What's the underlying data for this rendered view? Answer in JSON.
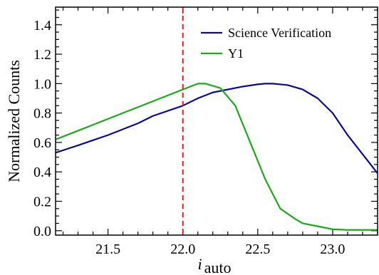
{
  "chart_data": {
    "type": "line",
    "title": "",
    "ylabel": "Normalized  Counts",
    "xlabel": {
      "main": "i",
      "subscript": "auto"
    },
    "xlim": [
      21.15,
      23.3
    ],
    "ylim": [
      -0.03,
      1.52
    ],
    "xticks": [
      21.5,
      22.0,
      22.5,
      23.0
    ],
    "xtick_labels": [
      "21.5",
      "22.0",
      "22.5",
      "23.0"
    ],
    "yticks": [
      0.0,
      0.2,
      0.4,
      0.6,
      0.8,
      1.0,
      1.2,
      1.4
    ],
    "ytick_labels": [
      "0.0",
      "0.2",
      "0.4",
      "0.6",
      "0.8",
      "1.0",
      "1.2",
      "1.4"
    ],
    "legend": {
      "placement": "top-right"
    },
    "vline": {
      "x": 22.0,
      "color": "#e41a1c",
      "style": "dashed"
    },
    "series": [
      {
        "name": "Science Verification",
        "color": "#0a0a96",
        "x": [
          21.15,
          21.3,
          21.5,
          21.7,
          21.8,
          22.0,
          22.1,
          22.2,
          22.3,
          22.4,
          22.5,
          22.55,
          22.6,
          22.7,
          22.8,
          22.9,
          23.0,
          23.1,
          23.2,
          23.3
        ],
        "values": [
          0.53,
          0.58,
          0.65,
          0.73,
          0.78,
          0.85,
          0.9,
          0.94,
          0.96,
          0.98,
          0.995,
          1.0,
          1.0,
          0.99,
          0.96,
          0.9,
          0.8,
          0.65,
          0.52,
          0.39
        ]
      },
      {
        "name": "Y1",
        "color": "#1aaa1a",
        "x": [
          21.15,
          21.3,
          21.5,
          21.7,
          21.9,
          22.0,
          22.1,
          22.15,
          22.25,
          22.35,
          22.45,
          22.55,
          22.65,
          22.75,
          22.8,
          22.9,
          23.0,
          23.1,
          23.2,
          23.3
        ],
        "values": [
          0.62,
          0.68,
          0.76,
          0.84,
          0.92,
          0.96,
          1.0,
          1.0,
          0.97,
          0.85,
          0.6,
          0.35,
          0.15,
          0.08,
          0.05,
          0.03,
          0.01,
          0.005,
          0.005,
          0.005
        ]
      }
    ]
  }
}
